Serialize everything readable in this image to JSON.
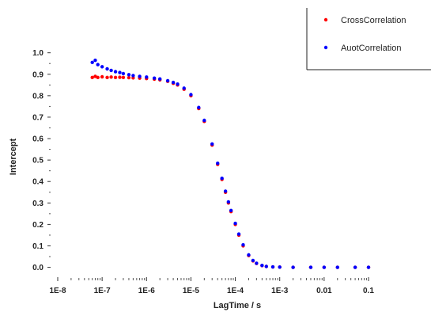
{
  "chart_data": {
    "type": "scatter",
    "title": "",
    "xlabel": "LagTime / s",
    "ylabel": "Intercept",
    "xscale": "log",
    "xlim": [
      1e-08,
      0.1
    ],
    "ylim": [
      -0.02,
      1.08
    ],
    "x_tick_labels": [
      "1E-8",
      "1E-7",
      "1E-6",
      "1E-5",
      "1E-4",
      "1E-3",
      "0.01",
      "0.1"
    ],
    "y_tick_labels": [
      "0.0",
      "0.1",
      "0.2",
      "0.3",
      "0.4",
      "0.5",
      "0.6",
      "0.7",
      "0.8",
      "0.9",
      "1.0"
    ],
    "grid": false,
    "legend_position": "top-right",
    "colors": {
      "cross": "#ff0000",
      "auto": "#0000ff"
    },
    "series": [
      {
        "name": "CrossCorrelation",
        "x": [
          6e-08,
          7e-08,
          8e-08,
          1e-07,
          1.3e-07,
          1.6e-07,
          2e-07,
          2.5e-07,
          3e-07,
          4e-07,
          5e-07,
          7e-07,
          1e-06,
          1.5e-06,
          2e-06,
          3e-06,
          4e-06,
          5e-06,
          7e-06,
          1e-05,
          1.5e-05,
          2e-05,
          3e-05,
          4e-05,
          5e-05,
          6e-05,
          7e-05,
          8e-05,
          0.0001,
          0.00012,
          0.00015,
          0.0002,
          0.00025,
          0.0003,
          0.0004,
          0.0005,
          0.0007,
          0.001,
          0.002,
          0.005,
          0.01,
          0.02,
          0.05,
          0.1
        ],
        "y": [
          0.885,
          0.89,
          0.885,
          0.888,
          0.885,
          0.887,
          0.885,
          0.886,
          0.885,
          0.884,
          0.883,
          0.882,
          0.88,
          0.877,
          0.874,
          0.867,
          0.858,
          0.85,
          0.83,
          0.8,
          0.74,
          0.68,
          0.57,
          0.48,
          0.41,
          0.35,
          0.3,
          0.26,
          0.2,
          0.15,
          0.1,
          0.055,
          0.03,
          0.018,
          0.008,
          0.004,
          0.002,
          0.001,
          0.0,
          0.0,
          0.0,
          0.0,
          0.0,
          0.0
        ]
      },
      {
        "name": "AuotCorrelation",
        "x": [
          6e-08,
          7e-08,
          8e-08,
          1e-07,
          1.3e-07,
          1.6e-07,
          2e-07,
          2.5e-07,
          3e-07,
          4e-07,
          5e-07,
          7e-07,
          1e-06,
          1.5e-06,
          2e-06,
          3e-06,
          4e-06,
          5e-06,
          7e-06,
          1e-05,
          1.5e-05,
          2e-05,
          3e-05,
          4e-05,
          5e-05,
          6e-05,
          7e-05,
          8e-05,
          0.0001,
          0.00012,
          0.00015,
          0.0002,
          0.00025,
          0.0003,
          0.0004,
          0.0005,
          0.0007,
          0.001,
          0.002,
          0.005,
          0.01,
          0.02,
          0.05,
          0.1
        ],
        "y": [
          0.955,
          0.965,
          0.945,
          0.935,
          0.925,
          0.918,
          0.912,
          0.908,
          0.903,
          0.898,
          0.894,
          0.89,
          0.887,
          0.882,
          0.878,
          0.87,
          0.862,
          0.854,
          0.835,
          0.805,
          0.745,
          0.685,
          0.575,
          0.485,
          0.415,
          0.355,
          0.305,
          0.265,
          0.205,
          0.155,
          0.105,
          0.058,
          0.032,
          0.019,
          0.009,
          0.004,
          0.002,
          0.001,
          0.0,
          0.0,
          0.0,
          0.0,
          0.0,
          0.0
        ]
      }
    ]
  }
}
